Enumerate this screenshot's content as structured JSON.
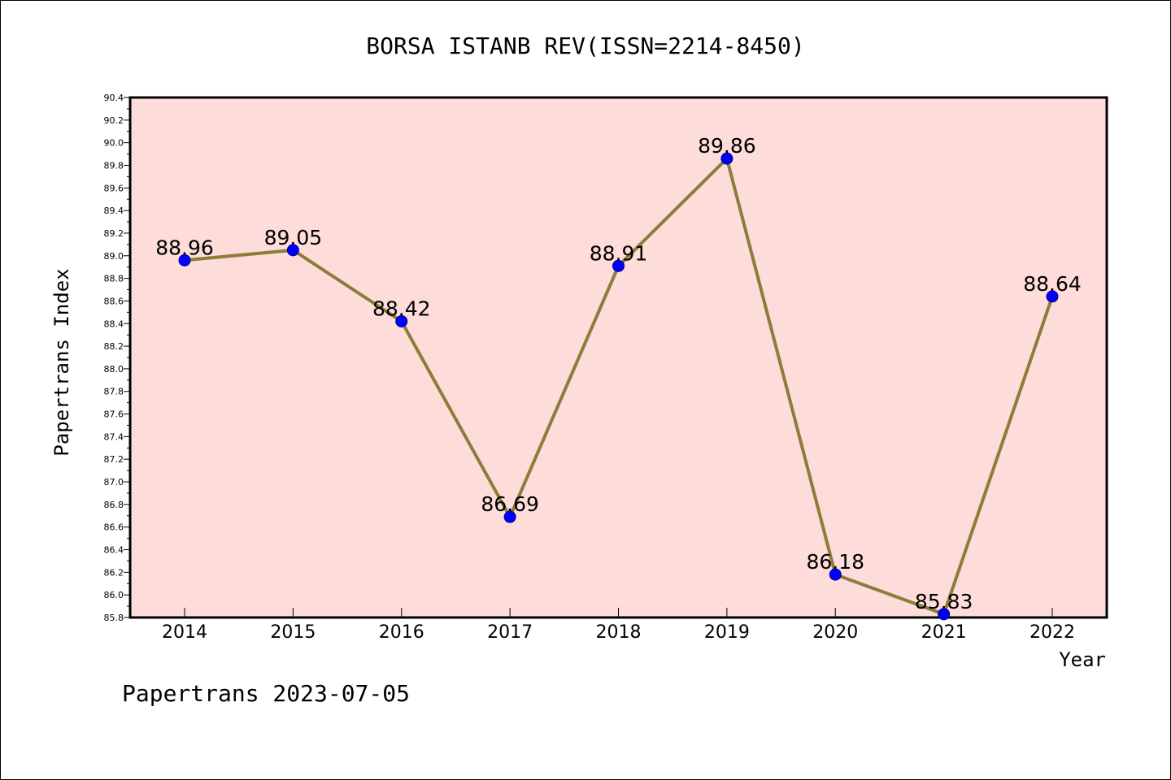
{
  "chart_data": {
    "type": "line",
    "title": "BORSA ISTANB REV(ISSN=2214-8450)",
    "xlabel": "Year",
    "ylabel": "Papertrans Index",
    "categories": [
      "2014",
      "2015",
      "2016",
      "2017",
      "2018",
      "2019",
      "2020",
      "2021",
      "2022"
    ],
    "series": [
      {
        "values": [
          88.96,
          89.05,
          88.42,
          86.69,
          88.91,
          89.86,
          86.18,
          85.83,
          88.64
        ],
        "data_labels": [
          "88.96",
          "89.05",
          "88.42",
          "86.69",
          "88.91",
          "89.86",
          "86.18",
          "85.83",
          "88.64"
        ]
      }
    ],
    "ylim": [
      85.8,
      90.4
    ],
    "yticks": [
      "85.8",
      "86.0",
      "86.2",
      "86.4",
      "86.6",
      "86.8",
      "87.0",
      "87.2",
      "87.4",
      "87.6",
      "87.8",
      "88.0",
      "88.2",
      "88.4",
      "88.6",
      "88.8",
      "89.0",
      "89.2",
      "89.4",
      "89.6",
      "89.8",
      "90.0",
      "90.2",
      "90.4"
    ],
    "grid": false,
    "footer": "Papertrans 2023-07-05",
    "colors": {
      "plot_background": "#fddcd9",
      "line": "#8b7d3a",
      "marker": "#0000ff",
      "axes": "#000000"
    }
  }
}
